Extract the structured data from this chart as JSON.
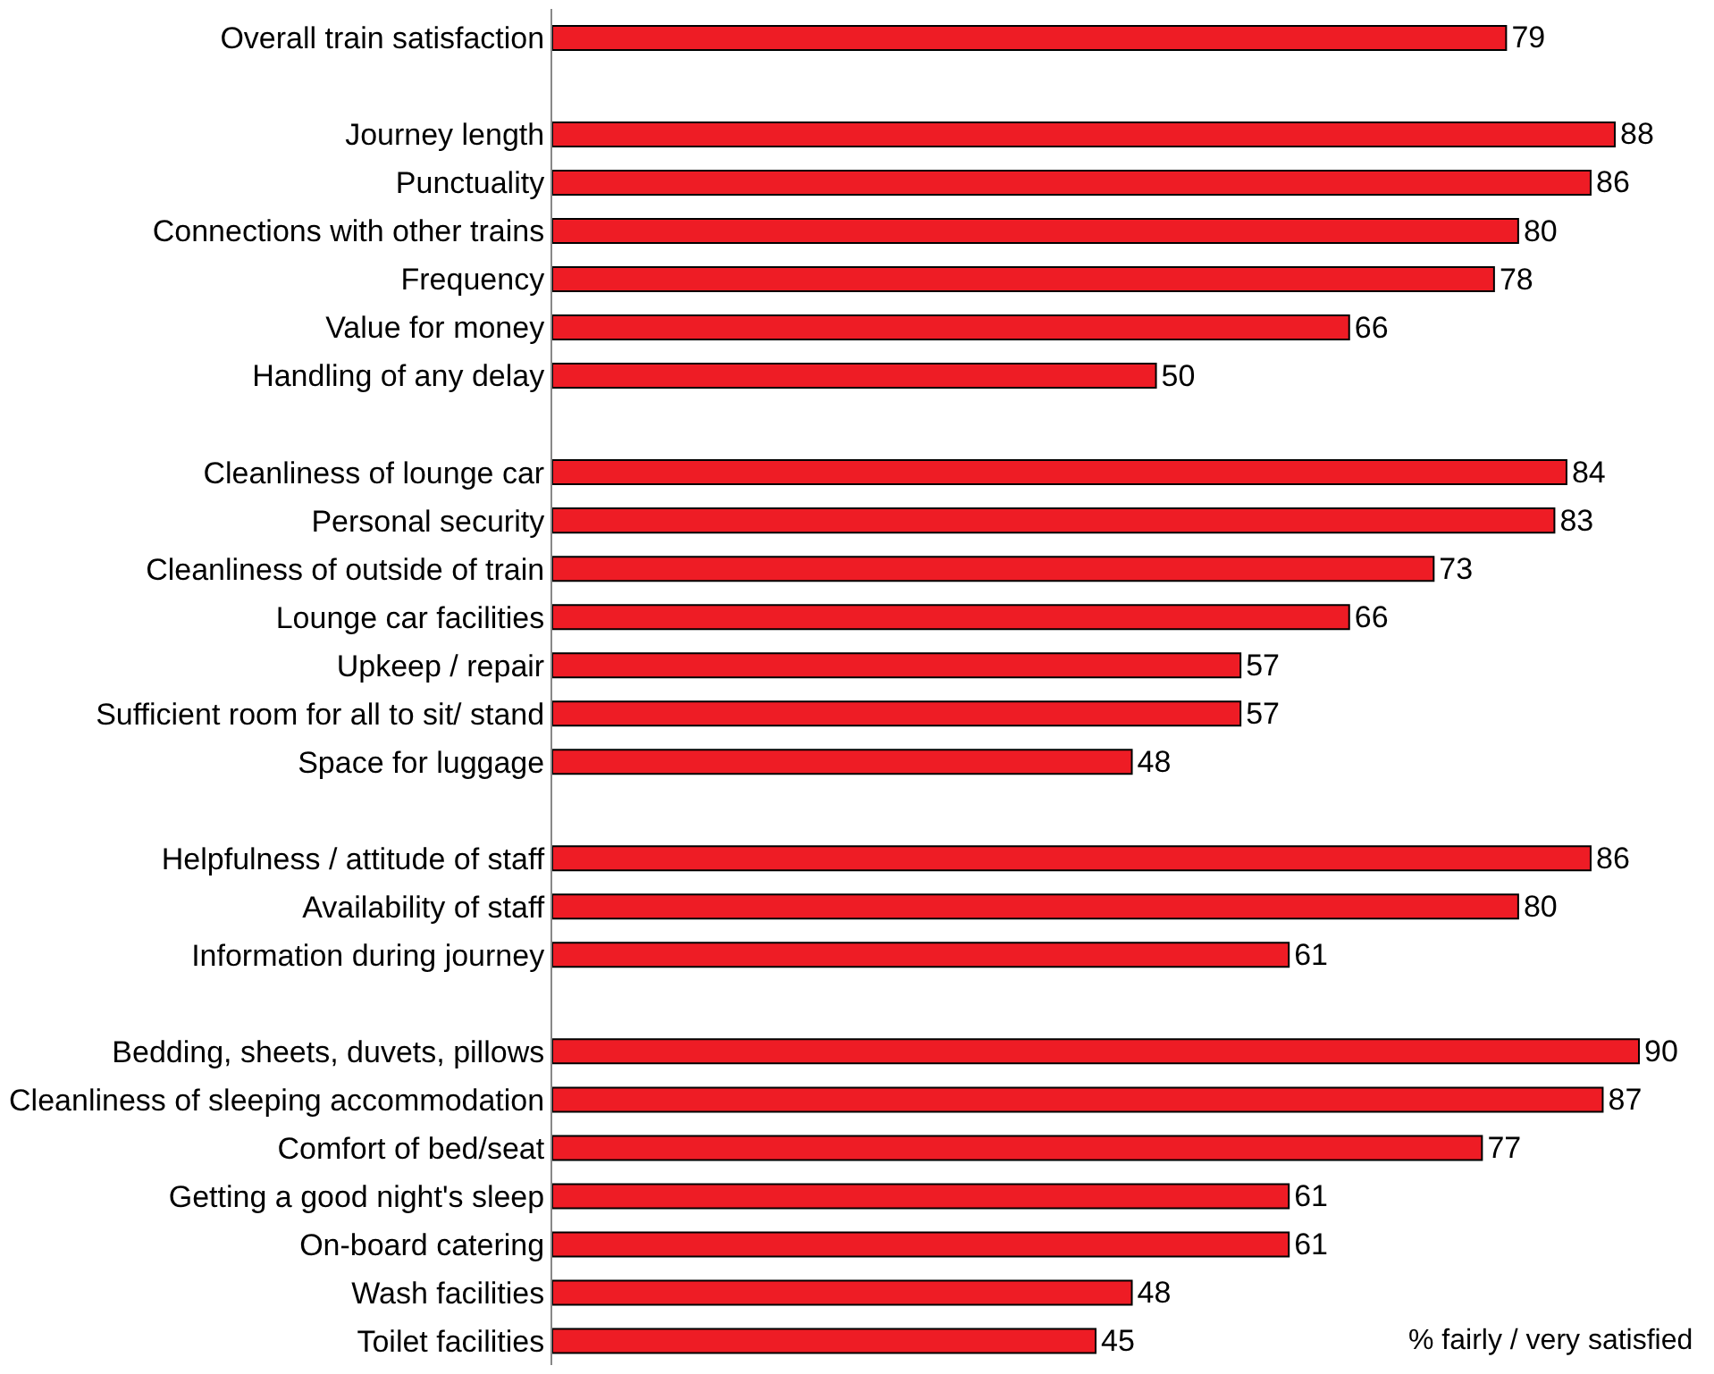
{
  "chart_data": {
    "type": "bar",
    "orientation": "horizontal",
    "xlabel": "% fairly / very satisfied",
    "tick_labels": "y",
    "data_labels": true,
    "categories": [
      "Overall train satisfaction",
      null,
      "Journey length",
      "Punctuality",
      "Connections with other trains",
      "Frequency",
      "Value for money",
      "Handling of any delay",
      null,
      "Cleanliness of lounge car",
      "Personal security",
      "Cleanliness of outside of train",
      "Lounge car facilities",
      "Upkeep / repair",
      "Sufficient room for all to sit/ stand",
      "Space for luggage",
      null,
      "Helpfulness / attitude of staff",
      "Availability of staff",
      "Information during journey",
      null,
      "Bedding, sheets, duvets, pillows",
      "Cleanliness of sleeping accommodation",
      "Comfort of bed/seat",
      "Getting a good night's sleep",
      "On-board catering",
      "Wash facilities",
      "Toilet facilities"
    ],
    "series": [
      {
        "color": "#ee1c25",
        "values": [
          79,
          null,
          88,
          86,
          80,
          78,
          66,
          50,
          null,
          84,
          83,
          73,
          66,
          57,
          57,
          48,
          null,
          86,
          80,
          61,
          null,
          90,
          87,
          77,
          61,
          61,
          48,
          45
        ]
      }
    ]
  }
}
